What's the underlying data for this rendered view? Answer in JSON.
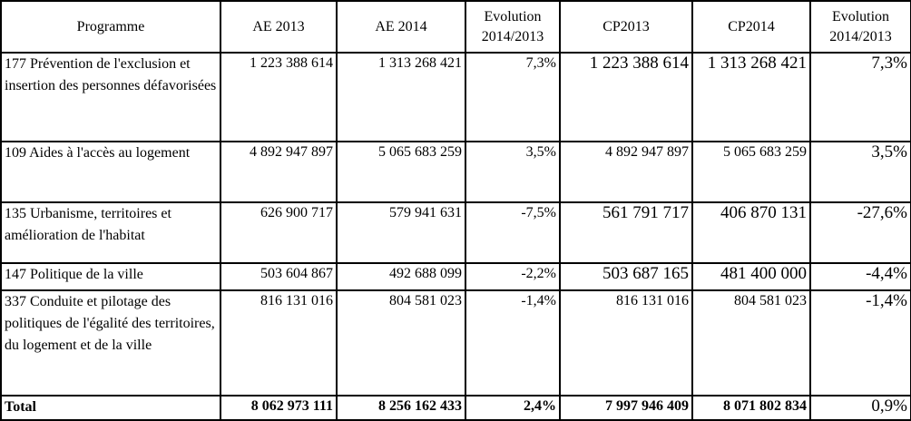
{
  "headers": {
    "programme": "Programme",
    "ae2013": "AE 2013",
    "ae2014": "AE 2014",
    "evol_ae": "Evolution 2014/2013",
    "cp2013": "CP2013",
    "cp2014": "CP2014",
    "evol_cp": "Evolution 2014/2013"
  },
  "rows": [
    {
      "programme": "177 Prévention de l'exclusion et insertion des personnes défavorisées",
      "ae2013": "1 223 388 614",
      "ae2014": "1 313 268 421",
      "evol_ae": "7,3%",
      "cp2013": "1 223 388 614",
      "cp2014": "1 313 268 421",
      "evol_cp": "7,3%"
    },
    {
      "programme": "109 Aides à l'accès au logement",
      "ae2013": "4 892 947 897",
      "ae2014": "5 065 683 259",
      "evol_ae": "3,5%",
      "cp2013": "4 892 947 897",
      "cp2014": "5 065 683 259",
      "evol_cp": "3,5%"
    },
    {
      "programme": "135 Urbanisme, territoires et amélioration de l'habitat",
      "ae2013": "626 900 717",
      "ae2014": "579 941 631",
      "evol_ae": "-7,5%",
      "cp2013": "561 791 717",
      "cp2014": "406 870 131",
      "evol_cp": "-27,6%"
    },
    {
      "programme": "147 Politique de la ville",
      "ae2013": "503 604 867",
      "ae2014": "492 688 099",
      "evol_ae": "-2,2%",
      "cp2013": "503 687 165",
      "cp2014": "481 400 000",
      "evol_cp": "-4,4%"
    },
    {
      "programme": "337 Conduite et pilotage des politiques de l'égalité des territoires, du logement et de la ville",
      "ae2013": "816 131 016",
      "ae2014": "804 581 023",
      "evol_ae": "-1,4%",
      "cp2013": "816 131 016",
      "cp2014": "804 581 023",
      "evol_cp": "-1,4%"
    }
  ],
  "total": {
    "label": "Total",
    "ae2013": "8 062 973 111",
    "ae2014": "8 256 162 433",
    "evol_ae": "2,4%",
    "cp2013": "7 997 946 409",
    "cp2014": "8 071 802 834",
    "evol_cp": "0,9%"
  }
}
